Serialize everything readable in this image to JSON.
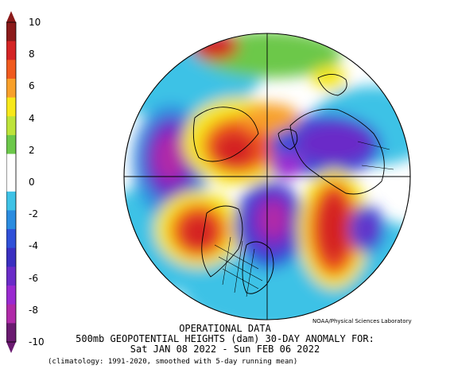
{
  "colorbar": {
    "labels": [
      "10",
      "8",
      "6",
      "4",
      "2",
      "0",
      "-2",
      "-4",
      "-6",
      "-8",
      "-10"
    ],
    "colors": [
      "#8b1a1a",
      "#d42424",
      "#f05a1e",
      "#f8a02a",
      "#f7e81a",
      "#bde33a",
      "#6cc84a",
      "#ffffff",
      "#ffffff",
      "#3ec2e6",
      "#2a8ce0",
      "#2f50d8",
      "#3a2fc0",
      "#6a2cc8",
      "#9a2ad0",
      "#b02aa8",
      "#6a1a70"
    ]
  },
  "credit": "NOAA/Physical Sciences Laboratory",
  "title": {
    "line1": "OPERATIONAL DATA",
    "line2": "500mb GEOPOTENTIAL HEIGHTS (dam)   30-DAY ANOMALY FOR:",
    "line3": "Sat JAN 08 2022 - Sun FEB 06 2022"
  },
  "footnote": "(climatology: 1991-2020, smoothed with 5-day running mean)",
  "anomalies": [
    {
      "region": "north-atlantic",
      "value": -6
    },
    {
      "region": "eastern-canada",
      "value": -8
    },
    {
      "region": "western-north-america",
      "value": 8
    },
    {
      "region": "north-pacific",
      "value": -8
    },
    {
      "region": "western-europe",
      "value": 8
    },
    {
      "region": "siberia",
      "value": 8
    },
    {
      "region": "arctic-siberia",
      "value": -6
    },
    {
      "region": "central-asia",
      "value": -6
    }
  ]
}
